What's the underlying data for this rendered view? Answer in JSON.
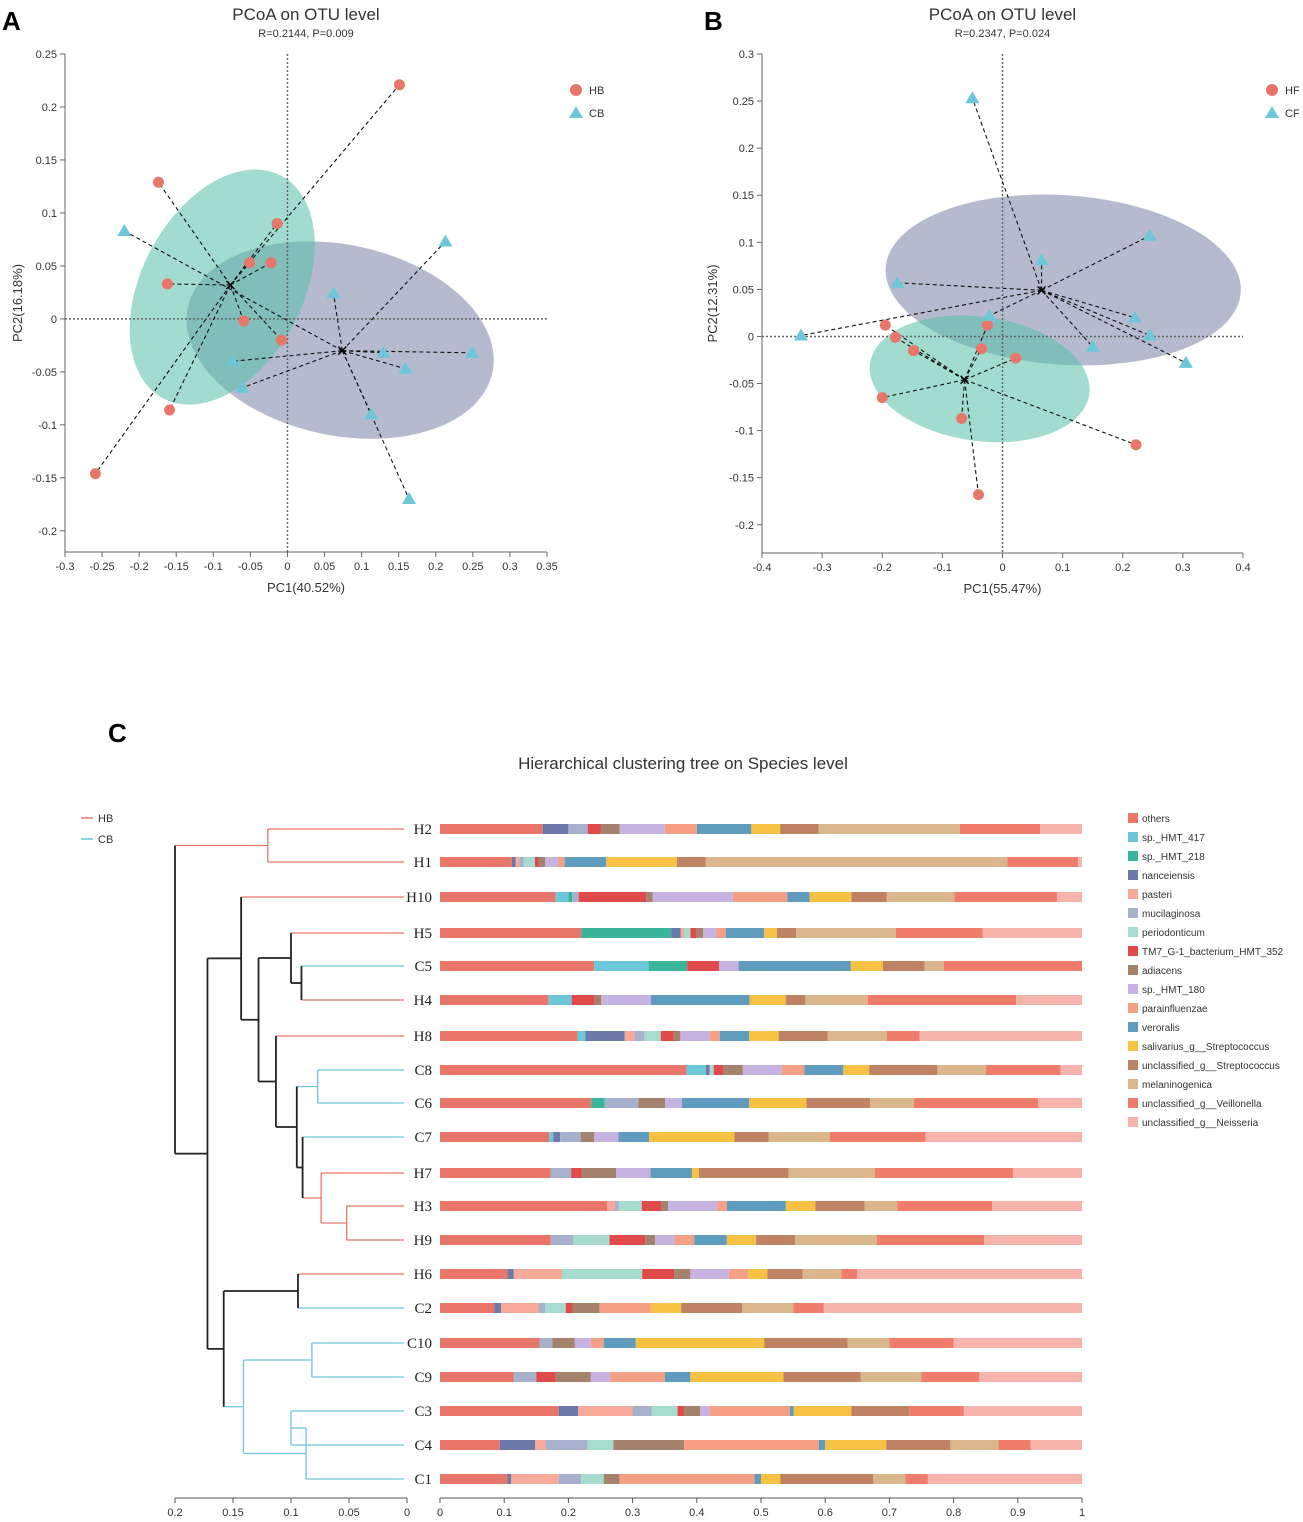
{
  "panels": {
    "a_label": "A",
    "b_label": "B",
    "c_label": "C"
  },
  "chart_data": [
    {
      "type": "scatter",
      "panel": "A",
      "title": "PCoA on OTU level",
      "subtitle": "R=0.2144, P=0.009",
      "xlabel": "PC1(40.52%)",
      "ylabel": "PC2(16.18%)",
      "xlim": [
        -0.3,
        0.35
      ],
      "ylim": [
        -0.22,
        0.25
      ],
      "xticks": [
        "-0.3",
        "-0.25",
        "-0.2",
        "-0.15",
        "-0.1",
        "-0.05",
        "0",
        "0.05",
        "0.1",
        "0.15",
        "0.2",
        "0.25",
        "0.3",
        "0.35"
      ],
      "yticks": [
        "0.25",
        "0.2",
        "0.15",
        "0.1",
        "0.05",
        "0",
        "-0.05",
        "-0.1",
        "-0.15",
        "-0.2"
      ],
      "legend": [
        {
          "name": "HB",
          "color": "#e8776a",
          "marker": "circle"
        },
        {
          "name": "CB",
          "color": "#6cc7d9",
          "marker": "triangle"
        }
      ],
      "groups": [
        {
          "name": "HB",
          "color": "#e8776a",
          "ellipse_color": "#55c0a7",
          "centroid": [
            -0.077,
            0.032
          ],
          "ellipse": {
            "cx": -0.088,
            "cy": 0.03,
            "rx": 0.17,
            "ry": 0.076,
            "angle_deg": 62
          },
          "points": [
            [
              0.151,
              0.221
            ],
            [
              -0.174,
              0.129
            ],
            [
              -0.014,
              0.09
            ],
            [
              -0.051,
              0.053
            ],
            [
              -0.022,
              0.053
            ],
            [
              -0.162,
              0.033
            ],
            [
              -0.059,
              -0.002
            ],
            [
              -0.008,
              -0.02
            ],
            [
              -0.159,
              -0.086
            ],
            [
              -0.259,
              -0.146
            ]
          ]
        },
        {
          "name": "CB",
          "color": "#6cc7d9",
          "ellipse_color": "#7a81a6",
          "centroid": [
            0.074,
            -0.03
          ],
          "ellipse": {
            "cx": 0.071,
            "cy": -0.02,
            "rx": 0.21,
            "ry": 0.09,
            "angle_deg": -12
          },
          "points": [
            [
              -0.22,
              0.083
            ],
            [
              0.213,
              0.073
            ],
            [
              0.062,
              0.024
            ],
            [
              -0.074,
              -0.04
            ],
            [
              0.129,
              -0.032
            ],
            [
              0.249,
              -0.032
            ],
            [
              0.159,
              -0.047
            ],
            [
              -0.061,
              -0.065
            ],
            [
              0.113,
              -0.09
            ],
            [
              0.164,
              -0.17
            ]
          ]
        }
      ]
    },
    {
      "type": "scatter",
      "panel": "B",
      "title": "PCoA on OTU level",
      "subtitle": "R=0.2347, P=0.024",
      "xlabel": "PC1(55.47%)",
      "ylabel": "PC2(12.31%)",
      "xlim": [
        -0.4,
        0.4
      ],
      "ylim": [
        -0.23,
        0.3
      ],
      "xticks": [
        "-0.4",
        "-0.3",
        "-0.2",
        "-0.1",
        "0",
        "0.1",
        "0.2",
        "0.3",
        "0.4"
      ],
      "yticks": [
        "0.3",
        "0.25",
        "0.2",
        "0.15",
        "0.1",
        "0.05",
        "0",
        "-0.05",
        "-0.1",
        "-0.15",
        "-0.2"
      ],
      "legend": [
        {
          "name": "HF",
          "color": "#e8776a",
          "marker": "circle"
        },
        {
          "name": "CF",
          "color": "#6cc7d9",
          "marker": "triangle"
        }
      ],
      "groups": [
        {
          "name": "HF",
          "color": "#e8776a",
          "ellipse_color": "#55c0a7",
          "centroid": [
            -0.063,
            -0.046
          ],
          "ellipse": {
            "cx": -0.038,
            "cy": -0.045,
            "rx": 0.184,
            "ry": 0.066,
            "angle_deg": -8
          },
          "points": [
            [
              -0.195,
              0.012
            ],
            [
              -0.025,
              0.012
            ],
            [
              -0.178,
              -0.001
            ],
            [
              -0.148,
              -0.015
            ],
            [
              -0.035,
              -0.013
            ],
            [
              0.022,
              -0.023
            ],
            [
              -0.2,
              -0.065
            ],
            [
              -0.068,
              -0.087
            ],
            [
              0.222,
              -0.115
            ],
            [
              -0.04,
              -0.168
            ]
          ]
        },
        {
          "name": "CF",
          "color": "#6cc7d9",
          "ellipse_color": "#7a81a6",
          "centroid": [
            0.065,
            0.049
          ],
          "ellipse": {
            "cx": 0.101,
            "cy": 0.06,
            "rx": 0.296,
            "ry": 0.09,
            "angle_deg": -4
          },
          "points": [
            [
              -0.05,
              0.253
            ],
            [
              0.245,
              0.107
            ],
            [
              0.065,
              0.081
            ],
            [
              -0.175,
              0.057
            ],
            [
              0.22,
              0.02
            ],
            [
              -0.022,
              0.022
            ],
            [
              -0.335,
              0.001
            ],
            [
              0.245,
              0.001
            ],
            [
              0.15,
              -0.011
            ],
            [
              0.305,
              -0.028
            ]
          ]
        }
      ]
    },
    {
      "type": "bar",
      "panel": "C",
      "title": "Hierarchical clustering tree on Species level",
      "tree_legend": [
        {
          "name": "HB",
          "color": "#e8776a"
        },
        {
          "name": "CB",
          "color": "#6cc7d9"
        }
      ],
      "tree_axis_ticks": [
        "0.2",
        "0.15",
        "0.1",
        "0.05",
        "0"
      ],
      "bar_axis_ticks": [
        "0",
        "0.1",
        "0.2",
        "0.3",
        "0.4",
        "0.5",
        "0.6",
        "0.7",
        "0.8",
        "0.9",
        "1"
      ],
      "species": [
        {
          "name": "others",
          "color": "#e8776a"
        },
        {
          "name": "sp._HMT_417",
          "color": "#6cc7d9"
        },
        {
          "name": "sp._HMT_218",
          "color": "#3bb59a"
        },
        {
          "name": "nanceiensis",
          "color": "#6b7aa8"
        },
        {
          "name": "pasteri",
          "color": "#f7a99a"
        },
        {
          "name": "mucilaginosa",
          "color": "#a7b1cd"
        },
        {
          "name": "periodonticum",
          "color": "#a6dccd"
        },
        {
          "name": "TM7_G-1_bacterium_HMT_352",
          "color": "#e04a4a"
        },
        {
          "name": "adiacens",
          "color": "#a4826b"
        },
        {
          "name": "sp._HMT_180",
          "color": "#c7b3e2"
        },
        {
          "name": "parainfluenzae",
          "color": "#f5a084"
        },
        {
          "name": "veroralis",
          "color": "#5f9cbd"
        },
        {
          "name": "salivarius_g__Streptococcus",
          "color": "#f7c244"
        },
        {
          "name": "unclassified_g__Streptococcus",
          "color": "#c08264"
        },
        {
          "name": "melaninogenica",
          "color": "#d9b68c"
        },
        {
          "name": "unclassified_g__Veillonella",
          "color": "#f07d6c"
        },
        {
          "name": "unclassified_g__Neisseria",
          "color": "#f7b4ac"
        }
      ],
      "samples": [
        {
          "name": "H2",
          "group": "HB",
          "values": [
            0.16,
            0.0,
            0.0,
            0.04,
            0.0,
            0.03,
            0.0,
            0.02,
            0.03,
            0.07,
            0.05,
            0.085,
            0.045,
            0.06,
            0.22,
            0.125,
            0.065
          ]
        },
        {
          "name": "H1",
          "group": "HB",
          "values": [
            0.112,
            0.0,
            0.0,
            0.006,
            0.006,
            0.006,
            0.018,
            0.006,
            0.01,
            0.02,
            0.01,
            0.065,
            0.11,
            0.045,
            0.47,
            0.11,
            0.006
          ]
        },
        {
          "name": "H10",
          "group": "HB",
          "values": [
            0.18,
            0.02,
            0.006,
            0.0,
            0.0,
            0.01,
            0.0,
            0.105,
            0.01,
            0.125,
            0.085,
            0.035,
            0.065,
            0.055,
            0.105,
            0.16,
            0.039
          ]
        },
        {
          "name": "H5",
          "group": "HB",
          "values": [
            0.22,
            0.0,
            0.14,
            0.015,
            0.005,
            0.0,
            0.01,
            0.01,
            0.01,
            0.02,
            0.015,
            0.06,
            0.02,
            0.03,
            0.155,
            0.135,
            0.155
          ]
        },
        {
          "name": "C5",
          "group": "CB",
          "values": [
            0.24,
            0.085,
            0.06,
            0.0,
            0.0,
            0.0,
            0.0,
            0.05,
            0.0,
            0.03,
            0.0,
            0.175,
            0.05,
            0.065,
            0.03,
            0.215,
            0.0
          ]
        },
        {
          "name": "H4",
          "group": "HB",
          "values": [
            0.165,
            0.035,
            0.0,
            0.0,
            0.0,
            0.0,
            0.0,
            0.035,
            0.01,
            0.075,
            0.0,
            0.15,
            0.055,
            0.03,
            0.095,
            0.225,
            0.1
          ]
        },
        {
          "name": "H8",
          "group": "HB",
          "values": [
            0.21,
            0.012,
            0.0,
            0.06,
            0.015,
            0.015,
            0.025,
            0.02,
            0.01,
            0.045,
            0.015,
            0.045,
            0.045,
            0.075,
            0.09,
            0.05,
            0.248
          ]
        },
        {
          "name": "C8",
          "group": "CB",
          "values": [
            0.38,
            0.03,
            0.0,
            0.006,
            0.0,
            0.0,
            0.006,
            0.015,
            0.03,
            0.06,
            0.035,
            0.06,
            0.04,
            0.105,
            0.075,
            0.115,
            0.033
          ]
        },
        {
          "name": "C6",
          "group": "CB",
          "values": [
            0.225,
            0.0,
            0.02,
            0.0,
            0.0,
            0.05,
            0.0,
            0.0,
            0.04,
            0.025,
            0.0,
            0.1,
            0.085,
            0.095,
            0.065,
            0.185,
            0.065
          ]
        },
        {
          "name": "C7",
          "group": "CB",
          "values": [
            0.16,
            0.006,
            0.0,
            0.01,
            0.0,
            0.03,
            0.0,
            0.0,
            0.02,
            0.035,
            0.0,
            0.045,
            0.125,
            0.05,
            0.09,
            0.14,
            0.229
          ]
        },
        {
          "name": "H7",
          "group": "HB",
          "values": [
            0.16,
            0.0,
            0.0,
            0.0,
            0.0,
            0.03,
            0.0,
            0.015,
            0.05,
            0.05,
            0.0,
            0.06,
            0.01,
            0.13,
            0.125,
            0.2,
            0.1
          ]
        },
        {
          "name": "H3",
          "group": "HB",
          "values": [
            0.255,
            0.0,
            0.0,
            0.0,
            0.012,
            0.006,
            0.035,
            0.03,
            0.01,
            0.075,
            0.015,
            0.09,
            0.045,
            0.075,
            0.05,
            0.145,
            0.137
          ]
        },
        {
          "name": "H9",
          "group": "HB",
          "values": [
            0.17,
            0.0,
            0.0,
            0.0,
            0.0,
            0.035,
            0.055,
            0.055,
            0.015,
            0.03,
            0.03,
            0.05,
            0.045,
            0.06,
            0.125,
            0.165,
            0.15
          ]
        },
        {
          "name": "H6",
          "group": "HB",
          "values": [
            0.105,
            0.0,
            0.0,
            0.01,
            0.075,
            0.0,
            0.125,
            0.05,
            0.025,
            0.06,
            0.03,
            0.0,
            0.03,
            0.055,
            0.06,
            0.025,
            0.35
          ]
        },
        {
          "name": "C2",
          "group": "CB",
          "values": [
            0.08,
            0.0,
            0.0,
            0.01,
            0.055,
            0.01,
            0.03,
            0.01,
            0.04,
            0.0,
            0.075,
            0.0,
            0.045,
            0.09,
            0.075,
            0.045,
            0.38
          ]
        },
        {
          "name": "C10",
          "group": "CB",
          "values": [
            0.155,
            0.0,
            0.0,
            0.0,
            0.0,
            0.02,
            0.0,
            0.0,
            0.035,
            0.025,
            0.02,
            0.05,
            0.2,
            0.13,
            0.065,
            0.1,
            0.2
          ]
        },
        {
          "name": "C9",
          "group": "CB",
          "values": [
            0.115,
            0.0,
            0.0,
            0.0,
            0.0,
            0.035,
            0.0,
            0.03,
            0.055,
            0.03,
            0.085,
            0.04,
            0.145,
            0.12,
            0.095,
            0.09,
            0.16
          ]
        },
        {
          "name": "C3",
          "group": "CB",
          "values": [
            0.185,
            0.0,
            0.0,
            0.03,
            0.085,
            0.03,
            0.04,
            0.01,
            0.025,
            0.015,
            0.125,
            0.006,
            0.09,
            0.09,
            0.0,
            0.085,
            0.184
          ]
        },
        {
          "name": "C4",
          "group": "CB",
          "values": [
            0.093,
            0.0,
            0.0,
            0.055,
            0.017,
            0.065,
            0.04,
            0.0,
            0.11,
            0.0,
            0.21,
            0.01,
            0.095,
            0.1,
            0.075,
            0.05,
            0.08
          ]
        },
        {
          "name": "C1",
          "group": "CB",
          "values": [
            0.105,
            0.0,
            0.0,
            0.006,
            0.074,
            0.035,
            0.035,
            0.0,
            0.025,
            0.0,
            0.21,
            0.01,
            0.03,
            0.145,
            0.05,
            0.035,
            0.24
          ]
        }
      ]
    }
  ]
}
